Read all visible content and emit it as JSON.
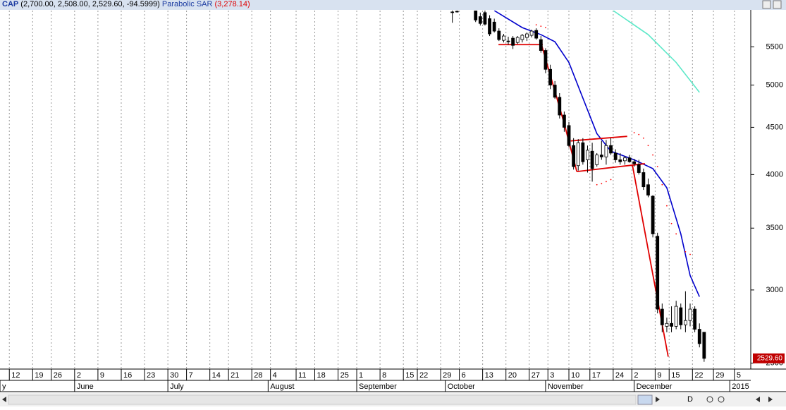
{
  "header": {
    "symbol": "CAP",
    "quote": "(2,700.00, 2,508.00, 2,529.60, -94.5999)",
    "indicator": "Parabolic SAR",
    "indicator_value": "(3,278.14)"
  },
  "toolbar": {
    "label": "D"
  },
  "chart_data": {
    "type": "candlestick",
    "log_scale": true,
    "grid": true,
    "xlim": [
      0,
      161
    ],
    "ylim": [
      2463,
      6020
    ],
    "yticks": [
      2500,
      3000,
      3500,
      4000,
      4500,
      5000,
      5500
    ],
    "xticks": [
      {
        "value": 2,
        "label": "12"
      },
      {
        "value": 7,
        "label": "19"
      },
      {
        "value": 11,
        "label": "26"
      },
      {
        "value": 16,
        "label": "2"
      },
      {
        "value": 21,
        "label": "9"
      },
      {
        "value": 26,
        "label": "16"
      },
      {
        "value": 31,
        "label": "23"
      },
      {
        "value": 36,
        "label": "30"
      },
      {
        "value": 40,
        "label": "7"
      },
      {
        "value": 45,
        "label": "14"
      },
      {
        "value": 49,
        "label": "21"
      },
      {
        "value": 54,
        "label": "28"
      },
      {
        "value": 58,
        "label": "4"
      },
      {
        "value": 63.5,
        "label": "11"
      },
      {
        "value": 67.5,
        "label": "18"
      },
      {
        "value": 72.5,
        "label": "25"
      },
      {
        "value": 76.5,
        "label": "1"
      },
      {
        "value": 81.5,
        "label": "8"
      },
      {
        "value": 86.5,
        "label": "15"
      },
      {
        "value": 89.5,
        "label": "22"
      },
      {
        "value": 94.5,
        "label": "29"
      },
      {
        "value": 98.5,
        "label": "6"
      },
      {
        "value": 103.5,
        "label": "13"
      },
      {
        "value": 108.5,
        "label": "20"
      },
      {
        "value": 113.5,
        "label": "27"
      },
      {
        "value": 117.5,
        "label": "3"
      },
      {
        "value": 122,
        "label": "10"
      },
      {
        "value": 126.5,
        "label": "17"
      },
      {
        "value": 131.5,
        "label": "24"
      },
      {
        "value": 135.5,
        "label": "2"
      },
      {
        "value": 140.5,
        "label": "9"
      },
      {
        "value": 143.5,
        "label": "15"
      },
      {
        "value": 148.5,
        "label": "22"
      },
      {
        "value": 153,
        "label": "29"
      },
      {
        "value": 157.5,
        "label": "5"
      }
    ],
    "months": [
      {
        "value": 0,
        "label": "y"
      },
      {
        "value": 16,
        "label": "June"
      },
      {
        "value": 36,
        "label": "July"
      },
      {
        "value": 57.5,
        "label": "August"
      },
      {
        "value": 76.5,
        "label": "September"
      },
      {
        "value": 95.5,
        "label": "October"
      },
      {
        "value": 117,
        "label": "November"
      },
      {
        "value": 136,
        "label": "December"
      },
      {
        "value": 156.5,
        "label": "2015"
      }
    ],
    "x": [
      97,
      98,
      102,
      103,
      104,
      105,
      106,
      107,
      108,
      109,
      110,
      111,
      112,
      113,
      114,
      115,
      116,
      117,
      118,
      119,
      120,
      121,
      122,
      123,
      124,
      125,
      126,
      127,
      128,
      129,
      130,
      131,
      132,
      133,
      134,
      135,
      136,
      137,
      138,
      139,
      140,
      141,
      142,
      143,
      144,
      145,
      146,
      147,
      148,
      149,
      150,
      151
    ],
    "open": [
      6000,
      6010,
      6020,
      5930,
      5990,
      5900,
      5850,
      5720,
      5590,
      5580,
      5620,
      5560,
      5600,
      5630,
      5660,
      5730,
      5600,
      5450,
      5200,
      5000,
      4850,
      4640,
      4520,
      4300,
      4090,
      4330,
      4150,
      4240,
      4100,
      4200,
      4180,
      4300,
      4220,
      4150,
      4140,
      4170,
      4130,
      4100,
      4020,
      3900,
      3790,
      3430,
      2860,
      2740,
      2760,
      2740,
      2870,
      2750,
      2780,
      2860,
      2720,
      2700
    ],
    "high": [
      6020,
      6020,
      6020,
      5990,
      6020,
      5950,
      5900,
      5760,
      5680,
      5640,
      5650,
      5650,
      5680,
      5700,
      5740,
      5760,
      5650,
      5480,
      5260,
      5050,
      4900,
      4680,
      4560,
      4380,
      4370,
      4380,
      4300,
      4330,
      4220,
      4350,
      4360,
      4380,
      4260,
      4220,
      4190,
      4200,
      4160,
      4150,
      4060,
      3960,
      3800,
      3460,
      2900,
      2800,
      2880,
      2920,
      2900,
      2990,
      2900,
      2880,
      2760,
      2700
    ],
    "low": [
      5840,
      5990,
      5850,
      5800,
      5800,
      5650,
      5700,
      5580,
      5560,
      5530,
      5470,
      5540,
      5560,
      5580,
      5630,
      5600,
      5420,
      5150,
      4950,
      4830,
      4600,
      4450,
      4280,
      4050,
      4040,
      4100,
      4020,
      3930,
      4080,
      4150,
      4100,
      4200,
      4120,
      4100,
      4100,
      4120,
      4080,
      4000,
      3850,
      3780,
      3420,
      2830,
      2700,
      2700,
      2700,
      2720,
      2720,
      2700,
      2740,
      2700,
      2600,
      2508
    ],
    "close": [
      5990,
      6000,
      5880,
      5830,
      5820,
      5680,
      5720,
      5600,
      5650,
      5570,
      5520,
      5630,
      5660,
      5680,
      5720,
      5620,
      5450,
      5200,
      5000,
      4850,
      4640,
      4500,
      4300,
      4080,
      4330,
      4130,
      4250,
      4060,
      4200,
      4180,
      4300,
      4220,
      4150,
      4130,
      4170,
      4130,
      4110,
      4020,
      3880,
      3800,
      3450,
      2860,
      2750,
      2760,
      2740,
      2880,
      2750,
      2780,
      2860,
      2720,
      2624.2,
      2529.6
    ],
    "price_label": {
      "value": 2529.6,
      "label": "2529.60"
    },
    "lines": [
      {
        "color": "#0000cc",
        "x": [
          106,
          112,
          116,
          119,
          122,
          125,
          128,
          131,
          136,
          140,
          143,
          146,
          148,
          150
        ],
        "values": [
          6020,
          5770,
          5670,
          5570,
          5290,
          4840,
          4430,
          4240,
          4150,
          4060,
          3870,
          3450,
          3110,
          2950
        ]
      },
      {
        "color": "#5ce8c8",
        "x": [
          131.5,
          139,
          145,
          150
        ],
        "values": [
          6020,
          5670,
          5290,
          4910
        ]
      }
    ],
    "sar": {
      "color": "#ff0000",
      "x": [
        115,
        116,
        117,
        128,
        129,
        130,
        131,
        136,
        137,
        138,
        139,
        140,
        141,
        142,
        143,
        144,
        145,
        147,
        148
      ],
      "values": [
        5810,
        5790,
        5770,
        3900,
        3910,
        3930,
        3950,
        4440,
        4420,
        4380,
        4300,
        4200,
        4080,
        3900,
        3700,
        3540,
        3450,
        3300,
        3278.14
      ]
    },
    "trendlines": [
      {
        "color": "#e00000",
        "x": [
          106.9,
          116.4
        ],
        "values": [
          5530,
          5530
        ]
      },
      {
        "color": "#e00000",
        "x": [
          115.9,
          120.9,
          123.7
        ],
        "values": [
          5580,
          4560,
          4030
        ]
      },
      {
        "color": "#e00000",
        "x": [
          122.4,
          134.5
        ],
        "values": [
          4350,
          4400
        ]
      },
      {
        "color": "#e00000",
        "x": [
          123.7,
          138.3
        ],
        "values": [
          4030,
          4110
        ]
      },
      {
        "color": "#e00000",
        "x": [
          135.6,
          143.3
        ],
        "values": [
          4100,
          2540
        ]
      }
    ]
  }
}
